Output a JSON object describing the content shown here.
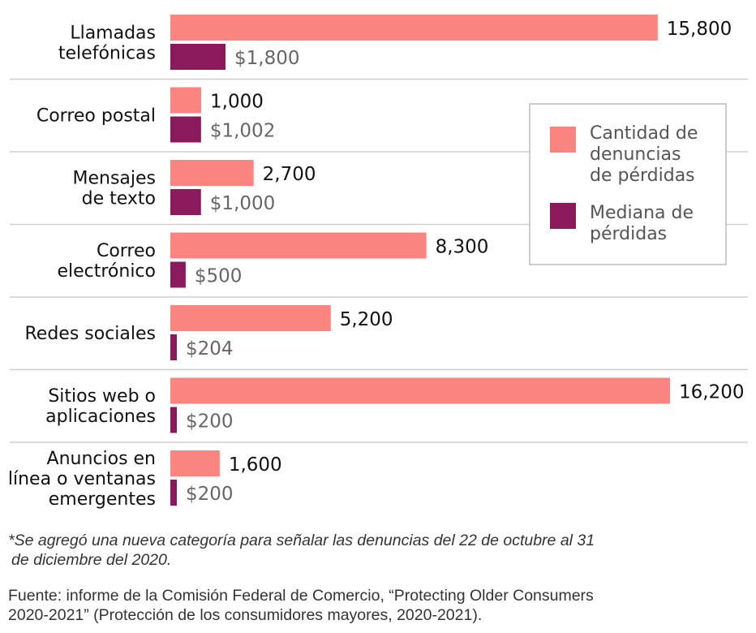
{
  "chart_data": {
    "type": "bar",
    "orientation": "horizontal",
    "categories": [
      [
        "Llamadas",
        "telefónicas"
      ],
      [
        "Correo postal"
      ],
      [
        "Mensajes",
        "de texto"
      ],
      [
        "Correo",
        "electrónico"
      ],
      [
        "Redes sociales"
      ],
      [
        "Sitios web o",
        "aplicaciones"
      ],
      [
        "Anuncios en",
        "línea o ventanas",
        "emergentes"
      ]
    ],
    "series": [
      {
        "name": "Cantidad de denuncias de pérdidas",
        "color": "#fa8580",
        "values": [
          15800,
          1000,
          2700,
          8300,
          5200,
          16200,
          1600
        ],
        "labels": [
          "15,800",
          "1,000",
          "2,700",
          "8,300",
          "5,200",
          "16,200",
          "1,600"
        ]
      },
      {
        "name": "Mediana de pérdidas",
        "color": "#8b1a5c",
        "values": [
          1800,
          1002,
          1000,
          500,
          204,
          200,
          200
        ],
        "labels": [
          "$1,800",
          "$1,002",
          "$1,000",
          "$500",
          "$204",
          "$200",
          "$200"
        ]
      }
    ],
    "legend": {
      "placement": "right",
      "entries": [
        {
          "lines": [
            "Cantidad de",
            "denuncias",
            "de pérdidas"
          ],
          "color": "#fa8580"
        },
        {
          "lines": [
            "Mediana de",
            "pérdidas"
          ],
          "color": "#8b1a5c"
        }
      ]
    },
    "grid": false
  },
  "footnote": {
    "line1": "*Se agregó una nueva categoría para señalar las denuncias del 22 de octubre al 31",
    "line2": "de diciembre del 2020."
  },
  "source": {
    "line1": "Fuente: informe de la Comisión Federal de Comercio, “Protecting Older Consumers",
    "line2": "2020-2021” (Protección de los consumidores mayores, 2020-2021)."
  }
}
